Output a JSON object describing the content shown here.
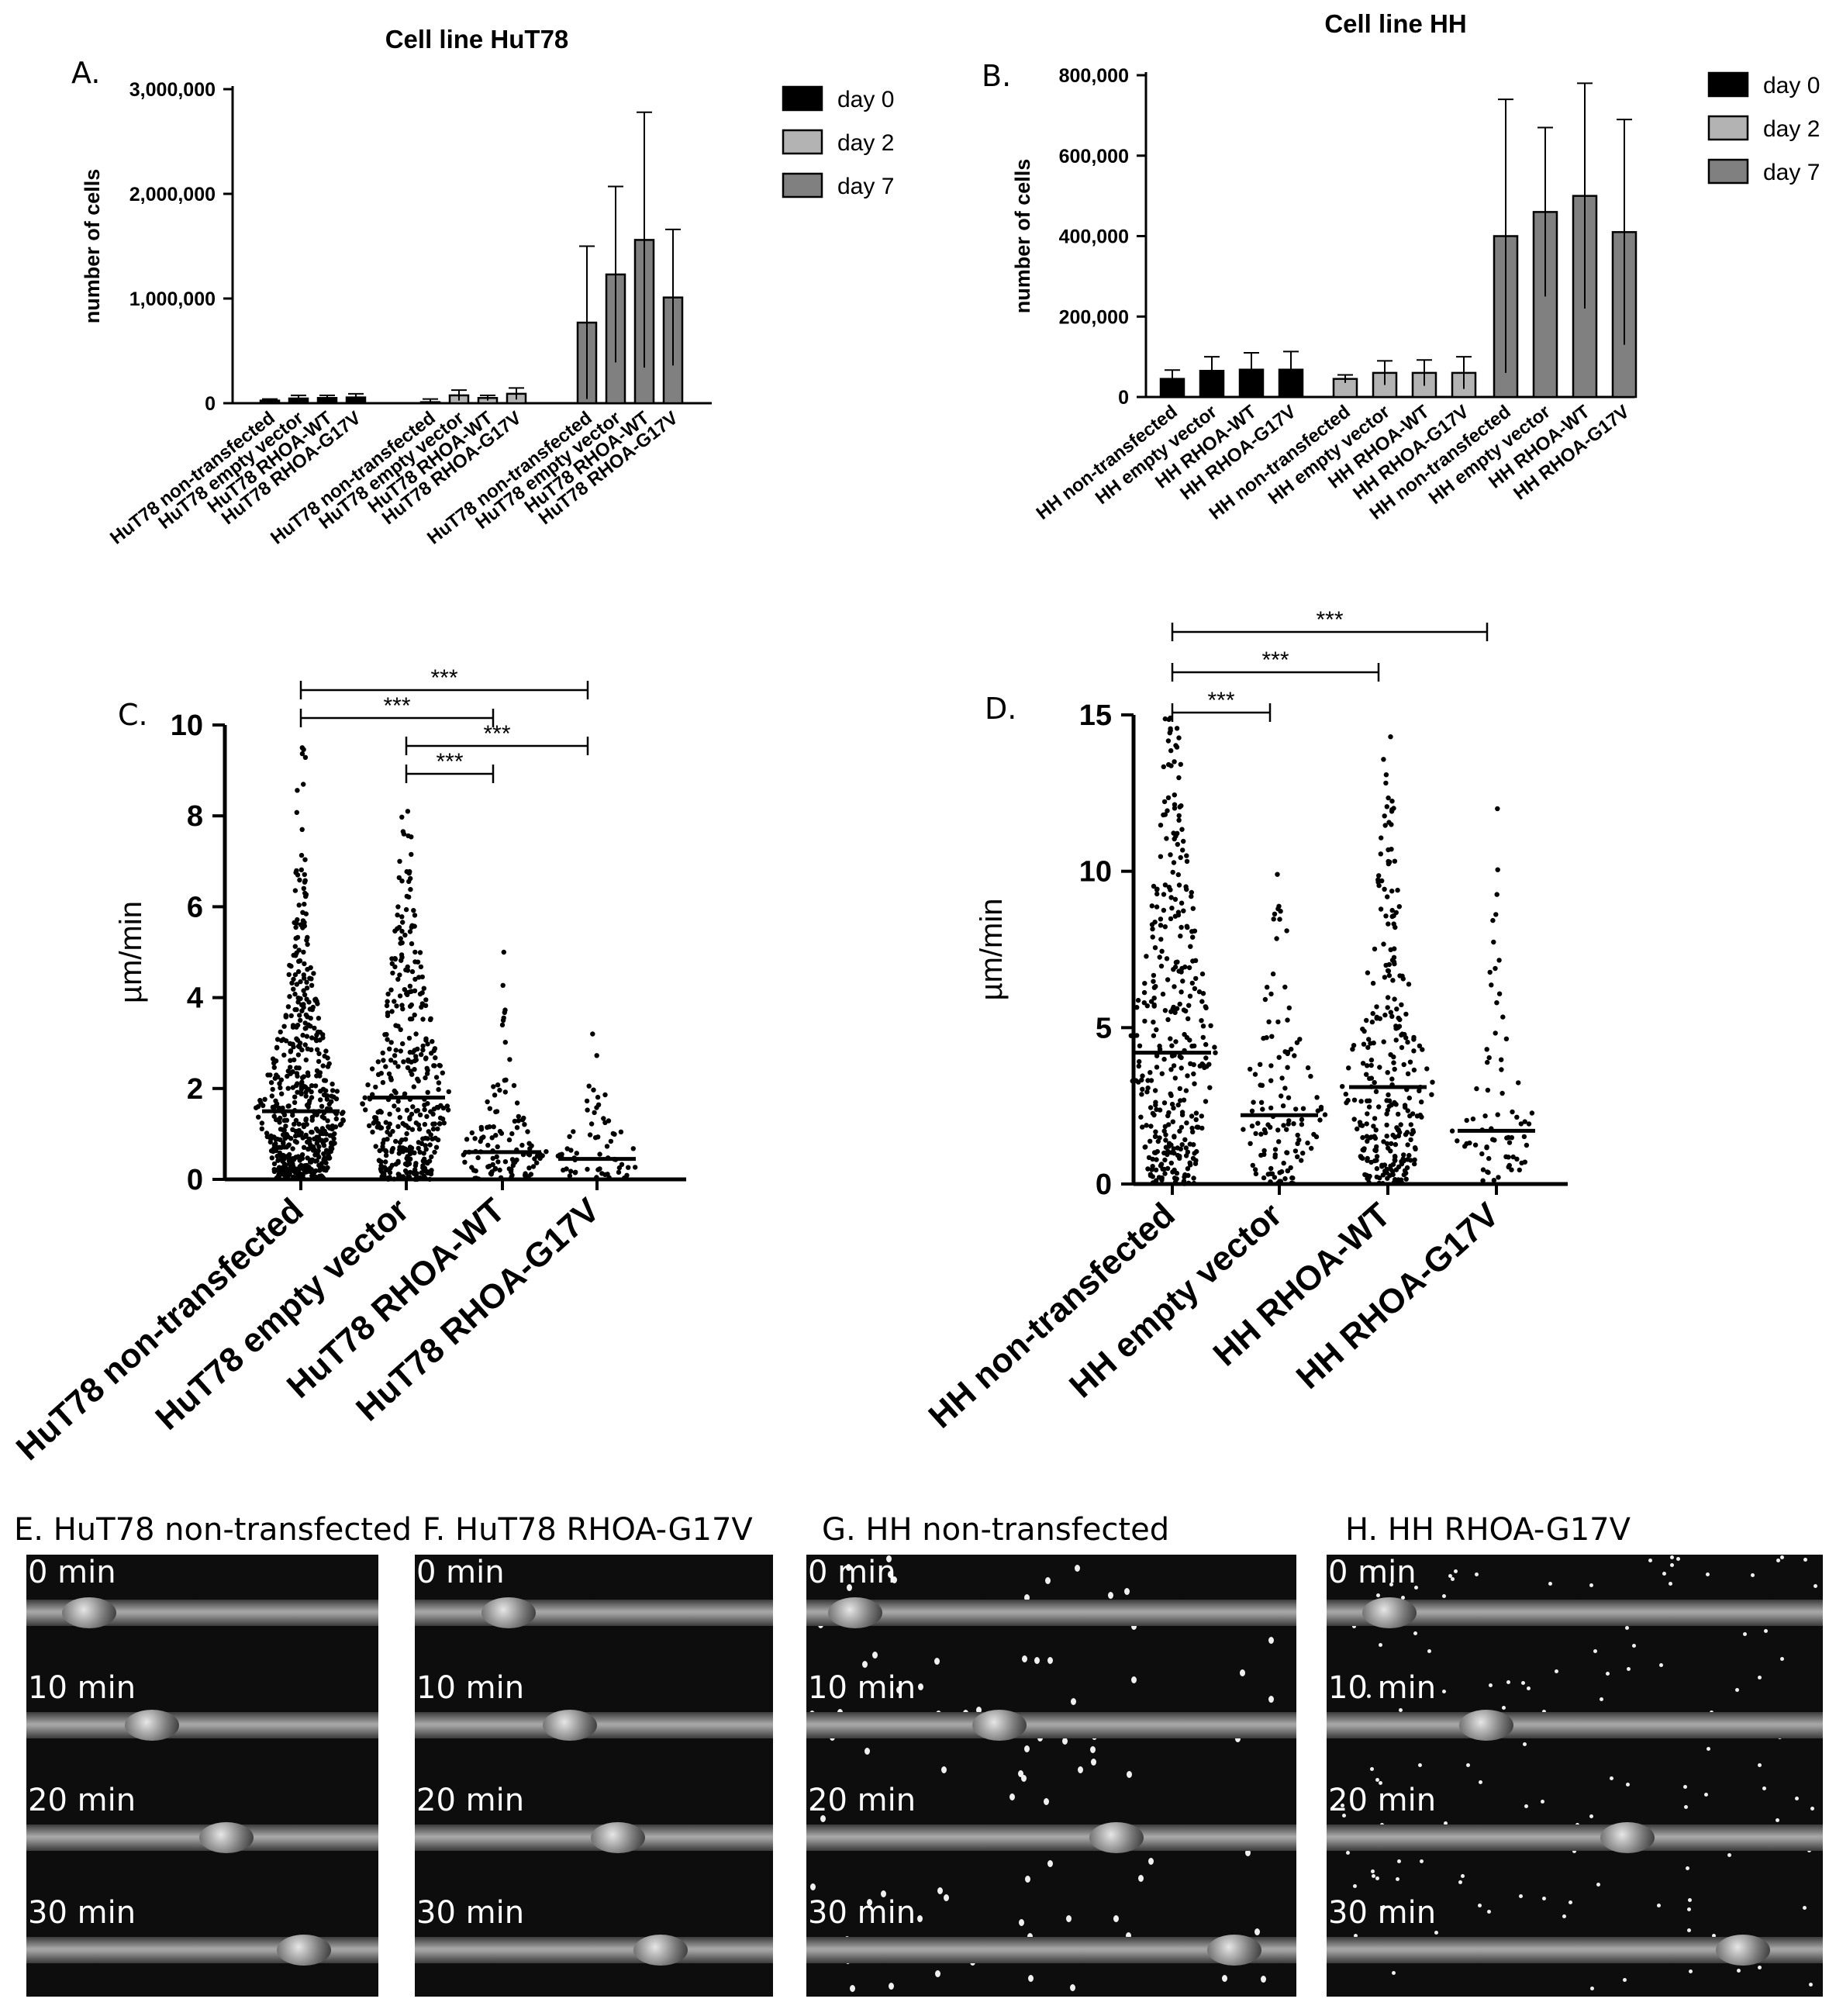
{
  "panels": {
    "A": {
      "letter": "A."
    },
    "B": {
      "letter": "B."
    },
    "C": {
      "letter": "C."
    },
    "D": {
      "letter": "D."
    }
  },
  "chart_data": [
    {
      "id": "A",
      "type": "bar",
      "title": "Cell line HuT78",
      "xlabel": "",
      "ylabel": "number of cells",
      "ylim": [
        0,
        3000000
      ],
      "yticks": [
        "0",
        "1,000,000",
        "2,000,000",
        "3,000,000"
      ],
      "ytick_values": [
        0,
        1000000,
        2000000,
        3000000
      ],
      "legend": {
        "position": "top-right",
        "entries": [
          {
            "name": "day 0",
            "color": "#000000"
          },
          {
            "name": "day 2",
            "color": "#b3b3b3"
          },
          {
            "name": "day 7",
            "color": "#808080"
          }
        ]
      },
      "groups": [
        {
          "series": "day 0",
          "categories": [
            "HuT78 non-transfected",
            "HuT78 empty vector",
            "HuT78 RHOA-WT",
            "HuT78 RHOA-G17V"
          ],
          "values": [
            25000,
            45000,
            50000,
            55000
          ],
          "errors": [
            15000,
            30000,
            25000,
            35000
          ]
        },
        {
          "series": "day 2",
          "categories": [
            "HuT78 non-transfected",
            "HuT78 empty vector",
            "HuT78 RHOA-WT",
            "HuT78 RHOA-G17V"
          ],
          "values": [
            10000,
            75000,
            50000,
            90000
          ],
          "errors": [
            30000,
            50000,
            25000,
            55000
          ]
        },
        {
          "series": "day 7",
          "categories": [
            "HuT78 non-transfected",
            "HuT78 empty vector",
            "HuT78 RHOA-WT",
            "HuT78 RHOA-G17V"
          ],
          "values": [
            770000,
            1230000,
            1560000,
            1010000
          ],
          "errors": [
            730000,
            840000,
            1220000,
            650000
          ]
        }
      ]
    },
    {
      "id": "B",
      "type": "bar",
      "title": "Cell line HH",
      "xlabel": "",
      "ylabel": "number of cells",
      "ylim": [
        0,
        800000
      ],
      "yticks": [
        "0",
        "200,000",
        "400,000",
        "600,000",
        "800,000"
      ],
      "ytick_values": [
        0,
        200000,
        400000,
        600000,
        800000
      ],
      "legend": {
        "position": "top-right",
        "entries": [
          {
            "name": "day 0",
            "color": "#000000"
          },
          {
            "name": "day 2",
            "color": "#b3b3b3"
          },
          {
            "name": "day 7",
            "color": "#808080"
          }
        ]
      },
      "groups": [
        {
          "series": "day 0",
          "categories": [
            "HH non-transfected",
            "HH empty vector",
            "HH RHOA-WT",
            "HH RHOA-G17V"
          ],
          "values": [
            45000,
            65000,
            68000,
            68000
          ],
          "errors": [
            22000,
            35000,
            42000,
            45000
          ]
        },
        {
          "series": "day 2",
          "categories": [
            "HH non-transfected",
            "HH empty vector",
            "HH RHOA-WT",
            "HH RHOA-G17V"
          ],
          "values": [
            45000,
            60000,
            60000,
            60000
          ],
          "errors": [
            10000,
            30000,
            32000,
            40000
          ]
        },
        {
          "series": "day 7",
          "categories": [
            "HH non-transfected",
            "HH empty vector",
            "HH RHOA-WT",
            "HH RHOA-G17V"
          ],
          "values": [
            400000,
            460000,
            500000,
            410000
          ],
          "errors": [
            340000,
            210000,
            280000,
            280000
          ]
        }
      ]
    },
    {
      "id": "C",
      "type": "scatter",
      "title": "",
      "xlabel": "",
      "ylabel": "µm/min",
      "ylim": [
        0,
        10
      ],
      "yticks": [
        "0",
        "2",
        "4",
        "6",
        "8",
        "10"
      ],
      "ytick_values": [
        0,
        2,
        4,
        6,
        8,
        10
      ],
      "categories": [
        "HuT78 non-transfected",
        "HuT78 empty vector",
        "HuT78 RHOA-WT",
        "HuT78 RHOA-G17V"
      ],
      "medians": [
        1.5,
        1.8,
        0.6,
        0.45
      ],
      "n_points": [
        560,
        380,
        110,
        60
      ],
      "max_values": [
        9.5,
        8.1,
        5.0,
        3.2
      ],
      "significance": [
        {
          "from": 0,
          "to": 3,
          "label": "***"
        },
        {
          "from": 0,
          "to": 2,
          "label": "***"
        },
        {
          "from": 1,
          "to": 3,
          "label": "***"
        },
        {
          "from": 1,
          "to": 2,
          "label": "***"
        }
      ]
    },
    {
      "id": "D",
      "type": "scatter",
      "title": "",
      "xlabel": "",
      "ylabel": "µm/min",
      "ylim": [
        0,
        15
      ],
      "yticks": [
        "0",
        "5",
        "10",
        "15"
      ],
      "ytick_values": [
        0,
        5,
        10,
        15
      ],
      "categories": [
        "HH non-transfected",
        "HH empty vector",
        "HH RHOA-WT",
        "HH RHOA-G17V"
      ],
      "medians": [
        4.2,
        2.2,
        3.1,
        1.7
      ],
      "n_points": [
        340,
        120,
        280,
        70
      ],
      "max_values": [
        14.9,
        9.9,
        14.3,
        12.0
      ],
      "significance": [
        {
          "from": 0,
          "to": 3,
          "label": "***"
        },
        {
          "from": 0,
          "to": 2,
          "label": "***"
        },
        {
          "from": 0,
          "to": 1,
          "label": "***"
        }
      ]
    }
  ],
  "image_panels": [
    {
      "id": "E",
      "caption": "E. HuT78 non-transfected",
      "times": [
        "0 min",
        "10 min",
        "20 min",
        "30 min"
      ],
      "cell_positions": [
        0.12,
        0.33,
        0.58,
        0.84
      ]
    },
    {
      "id": "F",
      "caption": "F. HuT78 RHOA-G17V",
      "times": [
        "0 min",
        "10 min",
        "20 min",
        "30 min"
      ],
      "cell_positions": [
        0.22,
        0.42,
        0.58,
        0.72
      ]
    },
    {
      "id": "G",
      "caption": "G. HH non-transfected",
      "times": [
        "0 min",
        "10 min",
        "20 min",
        "30 min"
      ],
      "cell_positions": [
        0.05,
        0.38,
        0.65,
        0.92
      ]
    },
    {
      "id": "H",
      "caption": "H. HH RHOA-G17V",
      "times": [
        "0 min",
        "10 min",
        "20 min",
        "30 min"
      ],
      "cell_positions": [
        0.08,
        0.3,
        0.62,
        0.88
      ]
    }
  ]
}
